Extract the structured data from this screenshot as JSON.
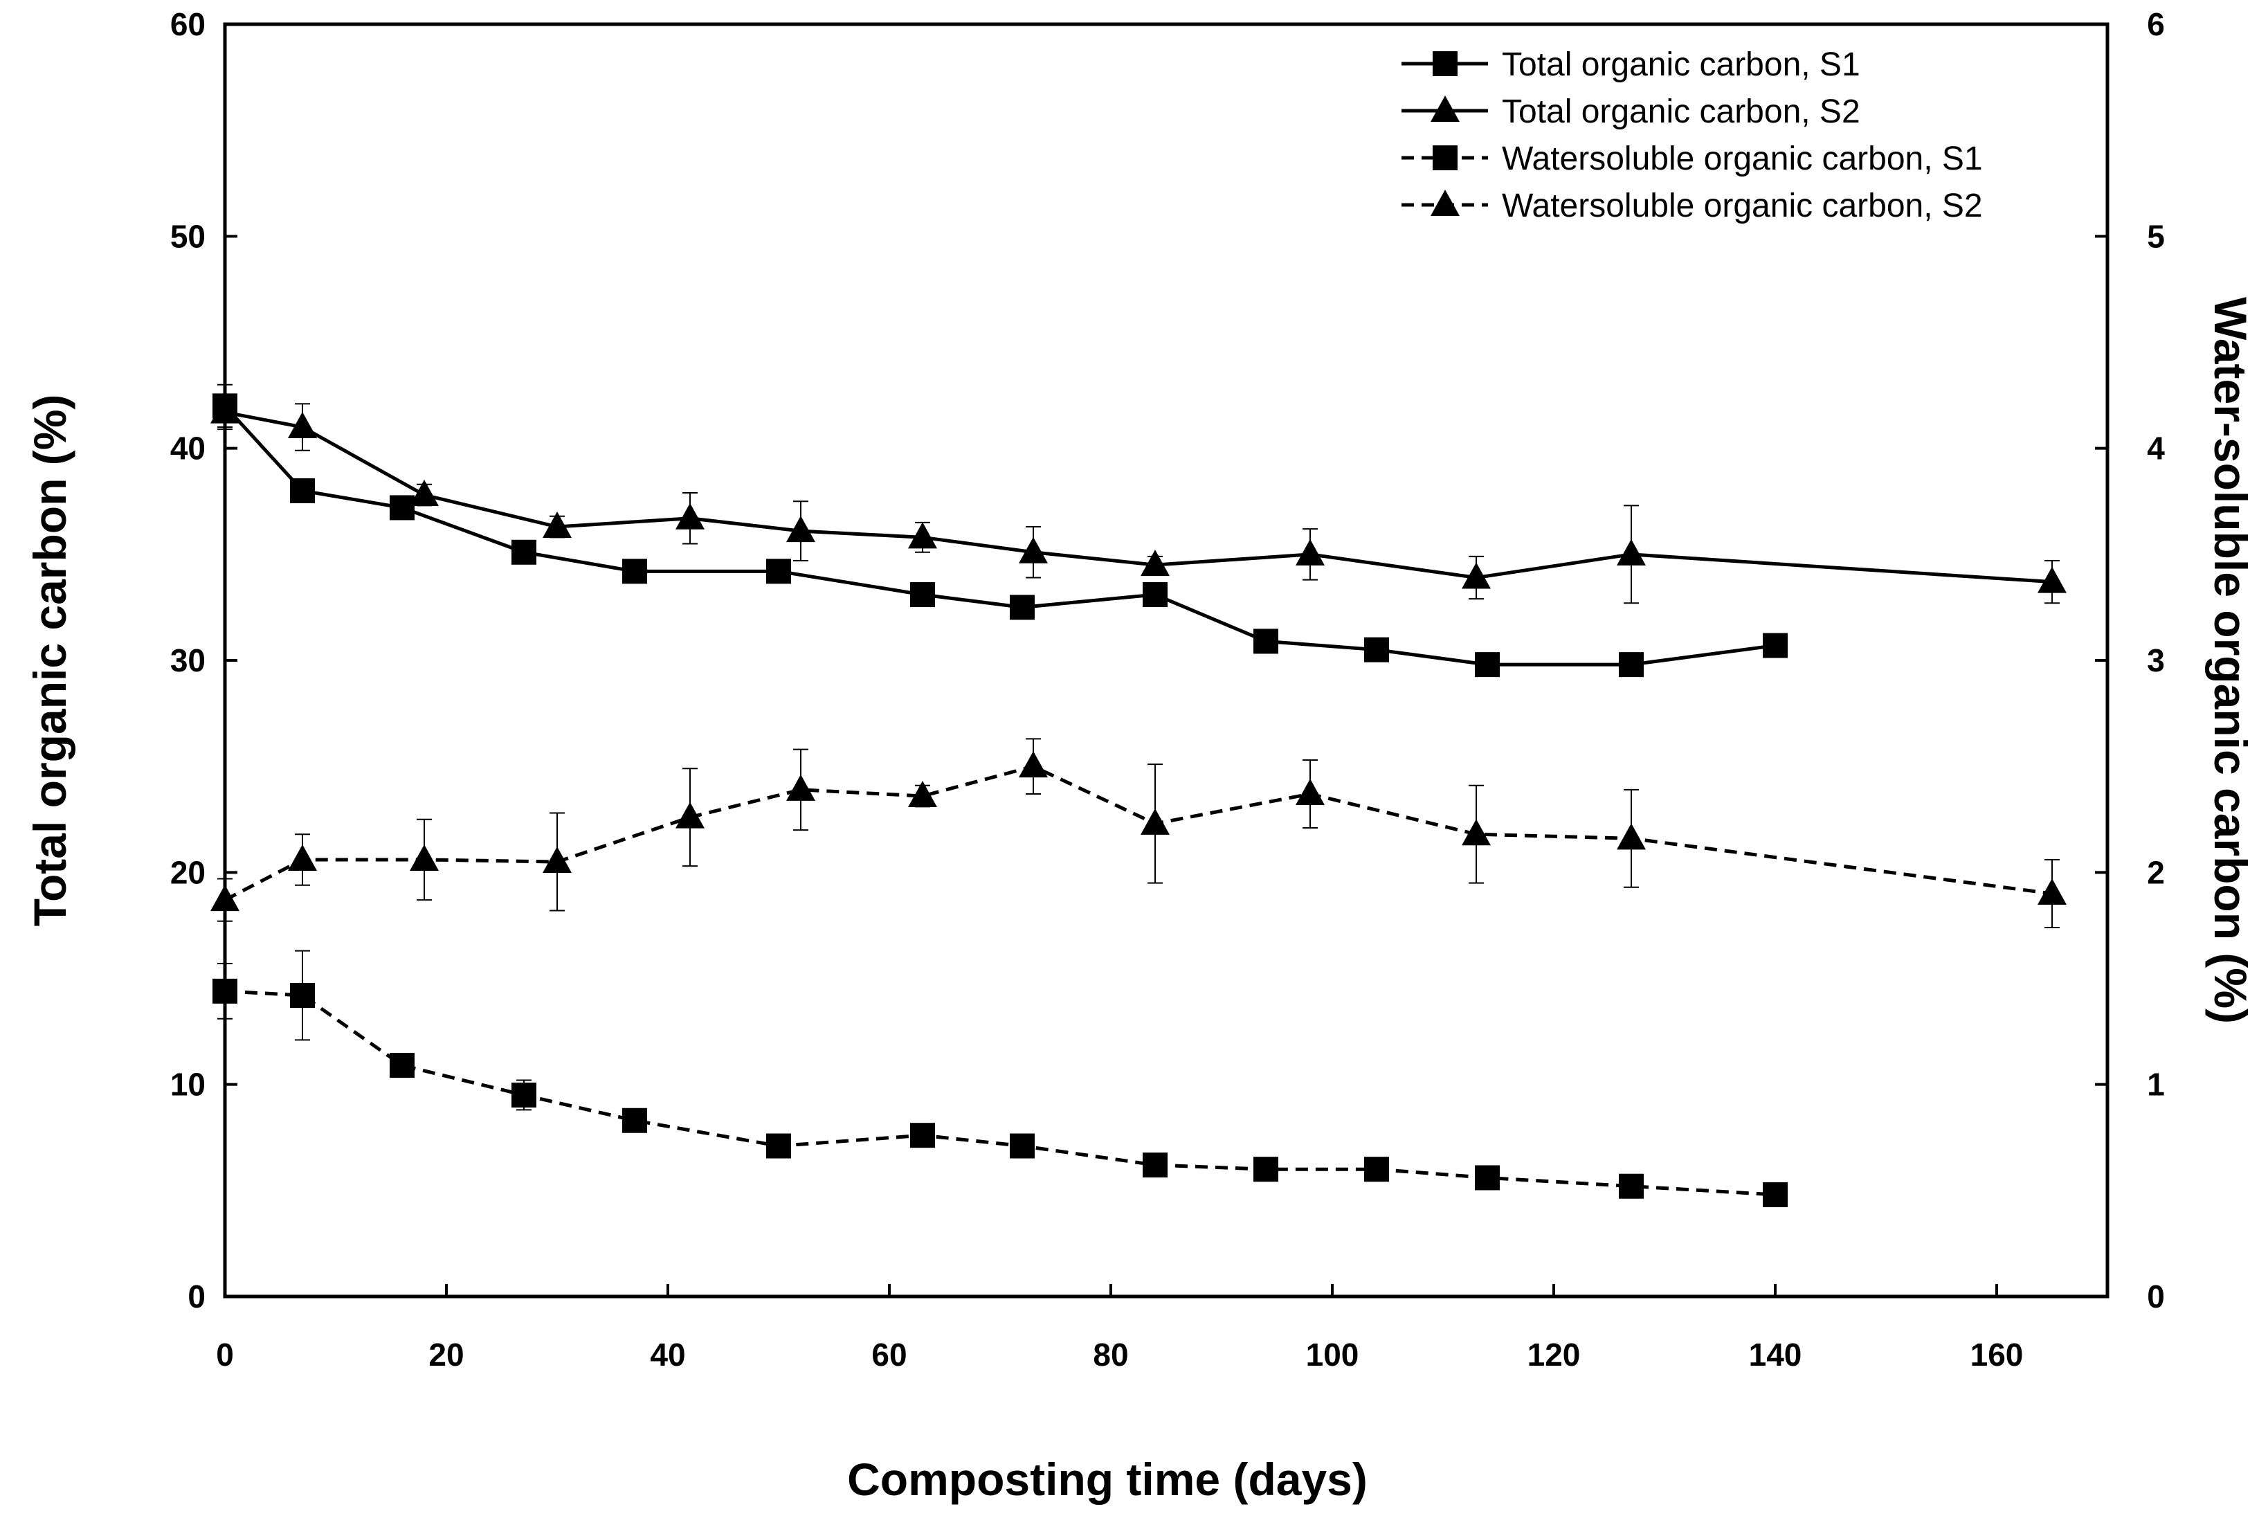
{
  "chart_data": {
    "type": "line",
    "xlabel": "Composting time (days)",
    "ylabel": "Total organic carbon (%)",
    "ylabel_right": "Water-soluble organic carbon (%)",
    "xlim": [
      0,
      170
    ],
    "ylim": [
      0,
      60
    ],
    "ylim_right": [
      0,
      6
    ],
    "x_ticks": [
      "0",
      "20",
      "40",
      "60",
      "80",
      "100",
      "120",
      "140",
      "160"
    ],
    "y_ticks": [
      "0",
      "10",
      "20",
      "30",
      "40",
      "50",
      "60"
    ],
    "y_ticks_right": [
      "0",
      "1",
      "2",
      "3",
      "4",
      "5",
      "6"
    ],
    "legend_position": "top-right",
    "series": [
      {
        "name": "Total organic carbon, S1",
        "axis": "left",
        "line_style": "solid",
        "marker": "square",
        "x": [
          0,
          7,
          16,
          27,
          37,
          50,
          63,
          72,
          84,
          94,
          104,
          114,
          127,
          140
        ],
        "y": [
          42,
          38,
          37.2,
          35.1,
          34.2,
          34.2,
          33.1,
          32.5,
          33.1,
          30.9,
          30.5,
          29.8,
          29.8,
          30.7
        ],
        "err": [
          1,
          0,
          0,
          0,
          0,
          0,
          0,
          0,
          0,
          0,
          0,
          0,
          0,
          0
        ]
      },
      {
        "name": "Total organic carbon, S2",
        "axis": "left",
        "line_style": "solid",
        "marker": "triangle",
        "x": [
          0,
          7,
          18,
          30,
          42,
          52,
          63,
          73,
          84,
          98,
          113,
          127,
          165
        ],
        "y": [
          41.7,
          41,
          37.8,
          36.3,
          36.7,
          36.1,
          35.8,
          35.1,
          34.5,
          35,
          33.9,
          35,
          33.7
        ],
        "err": [
          0.8,
          1.1,
          0.5,
          0.5,
          1.2,
          1.4,
          0.7,
          1.2,
          0.4,
          1.2,
          1,
          2.3,
          1
        ]
      },
      {
        "name": "Watersoluble organic carbon, S1",
        "axis": "right",
        "line_style": "dashed",
        "marker": "square",
        "x": [
          0,
          7,
          16,
          27,
          37,
          50,
          63,
          72,
          84,
          94,
          104,
          114,
          127,
          140
        ],
        "y": [
          1.44,
          1.42,
          1.09,
          0.95,
          0.83,
          0.71,
          0.76,
          0.71,
          0.62,
          0.6,
          0.6,
          0.56,
          0.52,
          0.48
        ],
        "err": [
          0.13,
          0.21,
          0.03,
          0.07,
          0.03,
          0.02,
          0.03,
          0.02,
          0.02,
          0.02,
          0.02,
          0.02,
          0.02,
          0.02
        ]
      },
      {
        "name": "Watersoluble organic carbon, S2",
        "axis": "right",
        "line_style": "dashed",
        "marker": "triangle",
        "x": [
          0,
          7,
          18,
          30,
          42,
          52,
          63,
          73,
          84,
          98,
          113,
          127,
          165
        ],
        "y": [
          1.87,
          2.06,
          2.06,
          2.05,
          2.26,
          2.39,
          2.36,
          2.5,
          2.23,
          2.37,
          2.18,
          2.16,
          1.9
        ],
        "err": [
          0.1,
          0.12,
          0.19,
          0.23,
          0.23,
          0.19,
          0.05,
          0.13,
          0.28,
          0.16,
          0.23,
          0.23,
          0.16
        ]
      }
    ]
  }
}
